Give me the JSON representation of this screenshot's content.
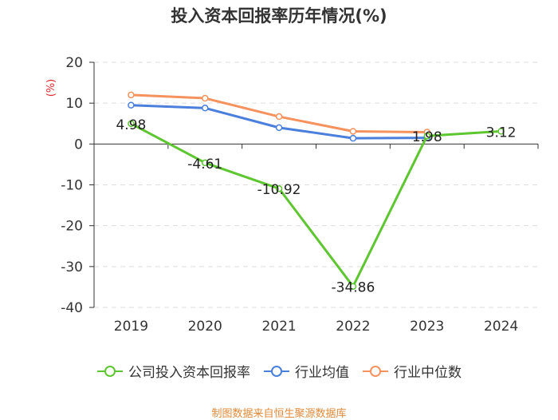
{
  "title": "投入资本回报率历年情况(%)",
  "source": "制图数据来自恒生聚源数据库",
  "chart_data": {
    "type": "line",
    "title": "投入资本回报率历年情况(%)",
    "ylabel": "(%)",
    "xlabel": "",
    "categories": [
      "2019",
      "2020",
      "2021",
      "2022",
      "2023",
      "2024"
    ],
    "ylim": [
      -40,
      20
    ],
    "yticks": [
      20,
      10,
      0,
      -10,
      -20,
      -30,
      -40
    ],
    "grid": true,
    "legend_position": "bottom",
    "series": [
      {
        "name": "公司投入资本回报率",
        "color": "#5dc630",
        "values": [
          4.98,
          -4.61,
          -10.92,
          -34.86,
          1.98,
          3.12
        ],
        "labels": [
          "4.98",
          "-4.61",
          "-10.92",
          "-34.86",
          "1.98",
          "3.12"
        ]
      },
      {
        "name": "行业均值",
        "color": "#4a7fdc",
        "values": [
          9.5,
          8.8,
          4.0,
          1.4,
          1.5,
          null
        ]
      },
      {
        "name": "行业中位数",
        "color": "#f5925e",
        "values": [
          12.0,
          11.2,
          6.7,
          3.1,
          2.9,
          null
        ]
      }
    ]
  }
}
